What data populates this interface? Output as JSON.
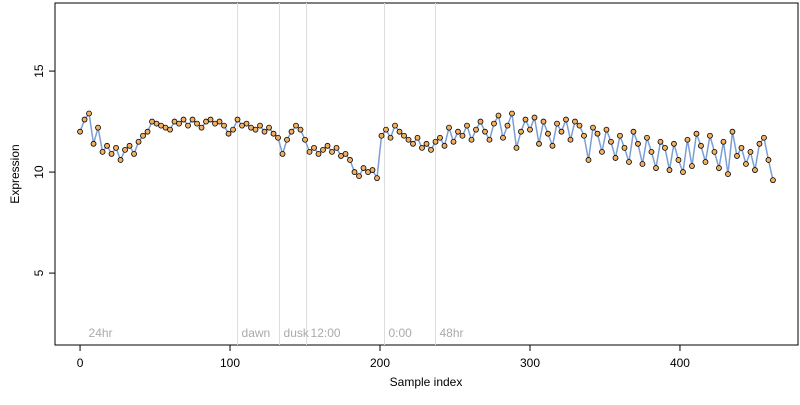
{
  "chart_data": {
    "type": "line",
    "x_label": "Sample index",
    "y_label": "Expression",
    "x": [
      0,
      3,
      6,
      9,
      12,
      15,
      18,
      21,
      24,
      27,
      30,
      33,
      36,
      39,
      42,
      45,
      48,
      51,
      54,
      57,
      60,
      63,
      66,
      69,
      72,
      75,
      78,
      81,
      84,
      87,
      90,
      93,
      96,
      99,
      102,
      105,
      108,
      111,
      114,
      117,
      120,
      123,
      126,
      129,
      132,
      135,
      138,
      141,
      144,
      147,
      150,
      153,
      156,
      159,
      162,
      165,
      168,
      171,
      174,
      177,
      180,
      183,
      186,
      189,
      192,
      195,
      198,
      201,
      204,
      207,
      210,
      213,
      216,
      219,
      222,
      225,
      228,
      231,
      234,
      237,
      240,
      243,
      246,
      249,
      252,
      255,
      258,
      261,
      264,
      267,
      270,
      273,
      276,
      279,
      282,
      285,
      288,
      291,
      294,
      297,
      300,
      303,
      306,
      309,
      312,
      315,
      318,
      321,
      324,
      327,
      330,
      333,
      336,
      339,
      342,
      345,
      348,
      351,
      354,
      357,
      360,
      363,
      366,
      369,
      372,
      375,
      378,
      381,
      384,
      387,
      390,
      393,
      396,
      399,
      402,
      405,
      408,
      411,
      414,
      417,
      420,
      423,
      426,
      429,
      432,
      435,
      438,
      441,
      444,
      447,
      450,
      453,
      456,
      459,
      462
    ],
    "series": [
      {
        "color": "#7b9fd4",
        "marker_fill": "#f4b060",
        "values": [
          12.0,
          12.6,
          12.9,
          11.4,
          12.2,
          11.0,
          11.3,
          10.9,
          11.2,
          10.6,
          11.1,
          11.3,
          10.9,
          11.5,
          11.8,
          12.0,
          12.5,
          12.4,
          12.3,
          12.2,
          12.1,
          12.5,
          12.4,
          12.6,
          12.3,
          12.6,
          12.4,
          12.2,
          12.5,
          12.6,
          12.4,
          12.5,
          12.3,
          11.9,
          12.1,
          12.6,
          12.3,
          12.4,
          12.2,
          12.1,
          12.3,
          12.0,
          12.2,
          11.9,
          11.7,
          10.9,
          11.6,
          12.0,
          12.3,
          12.1,
          11.6,
          11.0,
          11.2,
          10.9,
          11.1,
          11.3,
          11.0,
          11.2,
          10.8,
          10.9,
          10.6,
          10.0,
          9.8,
          10.2,
          10.0,
          10.1,
          9.7,
          11.8,
          12.1,
          11.7,
          12.3,
          12.0,
          11.8,
          11.6,
          11.4,
          11.7,
          11.2,
          11.4,
          11.1,
          11.5,
          11.7,
          11.3,
          12.2,
          11.5,
          12.0,
          11.8,
          12.3,
          11.6,
          12.1,
          12.5,
          12.0,
          11.6,
          12.4,
          12.8,
          11.7,
          12.3,
          12.9,
          11.2,
          12.0,
          12.6,
          12.1,
          12.7,
          11.4,
          12.5,
          11.9,
          11.3,
          12.4,
          12.0,
          12.6,
          11.6,
          12.5,
          12.3,
          11.8,
          10.6,
          12.2,
          11.9,
          11.0,
          12.1,
          11.5,
          10.7,
          11.8,
          11.2,
          10.5,
          12.0,
          11.4,
          10.4,
          11.7,
          11.0,
          10.2,
          11.5,
          11.2,
          10.1,
          11.4,
          10.6,
          10.0,
          11.6,
          10.3,
          11.9,
          11.3,
          10.5,
          11.8,
          11.0,
          10.2,
          11.5,
          9.9,
          12.0,
          10.8,
          11.2,
          10.4,
          11.0,
          10.1,
          11.4,
          11.7,
          10.6,
          9.6
        ]
      }
    ],
    "xlim": [
      -16.7,
      478.7
    ],
    "ylim": [
      1.44,
      18.37
    ],
    "xticks": [
      0,
      100,
      200,
      300,
      400
    ],
    "yticks": [
      5,
      10,
      15
    ],
    "vlines": [
      105,
      133,
      151,
      203,
      237
    ],
    "annotations": [
      {
        "x": 3,
        "text": "24hr"
      },
      {
        "x": 105,
        "text": "dawn"
      },
      {
        "x": 133,
        "text": "dusk"
      },
      {
        "x": 151,
        "text": "12:00"
      },
      {
        "x": 203,
        "text": "0:00"
      },
      {
        "x": 237,
        "text": "48hr"
      }
    ]
  }
}
